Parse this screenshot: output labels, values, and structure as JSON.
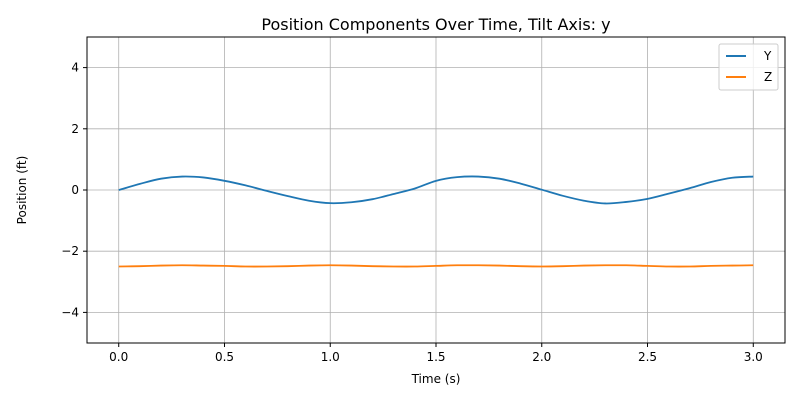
{
  "chart_data": {
    "type": "line",
    "title": "Position Components Over Time, Tilt Axis: y",
    "xlabel": "Time (s)",
    "ylabel": "Position (ft)",
    "xlim": [
      -0.15,
      3.15
    ],
    "ylim": [
      -5,
      5
    ],
    "xticks": [
      0.0,
      0.5,
      1.0,
      1.5,
      2.0,
      2.5,
      3.0
    ],
    "xtick_labels": [
      "0.0",
      "0.5",
      "1.0",
      "1.5",
      "2.0",
      "2.5",
      "3.0"
    ],
    "yticks": [
      -4,
      -2,
      0,
      2,
      4
    ],
    "ytick_labels": [
      "−4",
      "−2",
      "0",
      "2",
      "4"
    ],
    "grid": true,
    "legend_position": "top-right",
    "series": [
      {
        "name": "Y",
        "color": "#1f77b4",
        "x": [
          0.0,
          0.1,
          0.2,
          0.3,
          0.4,
          0.5,
          0.6,
          0.7,
          0.8,
          0.9,
          1.0,
          1.1,
          1.2,
          1.3,
          1.4,
          1.5,
          1.6,
          1.7,
          1.8,
          1.9,
          2.0,
          2.1,
          2.2,
          2.3,
          2.4,
          2.5,
          2.6,
          2.7,
          2.8,
          2.9,
          3.0
        ],
        "y": [
          0.0,
          0.2,
          0.37,
          0.44,
          0.41,
          0.3,
          0.15,
          -0.03,
          -0.2,
          -0.35,
          -0.43,
          -0.4,
          -0.3,
          -0.13,
          0.05,
          0.3,
          0.42,
          0.44,
          0.37,
          0.21,
          0.01,
          -0.19,
          -0.35,
          -0.44,
          -0.39,
          -0.29,
          -0.12,
          0.06,
          0.26,
          0.4,
          0.44
        ]
      },
      {
        "name": "Z",
        "color": "#ff7f0e",
        "x": [
          0.0,
          0.1,
          0.2,
          0.3,
          0.4,
          0.5,
          0.6,
          0.7,
          0.8,
          0.9,
          1.0,
          1.1,
          1.2,
          1.3,
          1.4,
          1.5,
          1.6,
          1.7,
          1.8,
          1.9,
          2.0,
          2.1,
          2.2,
          2.3,
          2.4,
          2.5,
          2.6,
          2.7,
          2.8,
          2.9,
          3.0
        ],
        "y": [
          -2.5,
          -2.49,
          -2.47,
          -2.46,
          -2.47,
          -2.48,
          -2.5,
          -2.5,
          -2.49,
          -2.47,
          -2.46,
          -2.47,
          -2.49,
          -2.5,
          -2.5,
          -2.48,
          -2.46,
          -2.46,
          -2.47,
          -2.49,
          -2.5,
          -2.49,
          -2.47,
          -2.46,
          -2.46,
          -2.48,
          -2.5,
          -2.5,
          -2.48,
          -2.47,
          -2.46
        ]
      }
    ]
  }
}
